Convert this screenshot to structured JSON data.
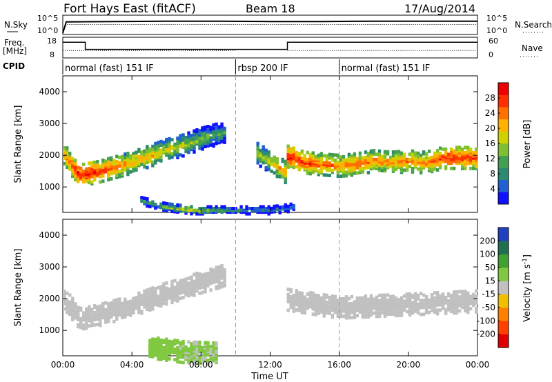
{
  "header": {
    "station": "Fort Hays East (fitACF)",
    "beam": "Beam 18",
    "date": "17/Aug/2014"
  },
  "summary_labels": {
    "nsky": "N.Sky",
    "nsearch": "N.Search",
    "freq": "Freq.",
    "freq_unit": "[MHz]",
    "nave": "Nave",
    "cpid": "CPID",
    "nsky_ticks": [
      "10^5",
      "10^0"
    ],
    "nsearch_ticks": [
      "10^5",
      "10^0"
    ],
    "freq_ticks": [
      "18",
      "8"
    ],
    "nave_ticks": [
      "60",
      "0"
    ]
  },
  "cpid_segments": [
    {
      "label": "normal (fast) 151 IF",
      "start_hour": 0,
      "end_hour": 10
    },
    {
      "label": "rbsp 200 IF",
      "start_hour": 10,
      "end_hour": 16
    },
    {
      "label": "normal (fast) 151 IF",
      "start_hour": 16,
      "end_hour": 24
    }
  ],
  "time_axis": {
    "label": "Time UT",
    "ticks": [
      "00:00",
      "04:00",
      "08:00",
      "12:00",
      "16:00",
      "20:00",
      "00:00"
    ],
    "tick_hours": [
      0,
      4,
      8,
      12,
      16,
      20,
      24
    ]
  },
  "range_axis": {
    "label": "Slant Range [km]",
    "ticks": [
      "1000",
      "2000",
      "3000",
      "4000"
    ],
    "tick_values": [
      1000,
      2000,
      3000,
      4000
    ],
    "ylim": [
      200,
      4500
    ]
  },
  "power_colorbar": {
    "label": "Power [dB]",
    "ticks": [
      "4",
      "8",
      "12",
      "16",
      "20",
      "24",
      "28"
    ],
    "colors": [
      "#1010ff",
      "#2060d0",
      "#2c8a70",
      "#44a050",
      "#80c030",
      "#d0d000",
      "#ffb000",
      "#ff7000",
      "#ff3000",
      "#ee0000"
    ]
  },
  "velocity_colorbar": {
    "label": "Velocity [m s",
    "label_exp": "-1",
    "ticks": [
      "200",
      "100",
      "50",
      "15",
      "-15",
      "-50",
      "-100",
      "-200"
    ],
    "colors": [
      "#2040c0",
      "#207050",
      "#40a030",
      "#80c840",
      "#c0c0c0",
      "#f0c000",
      "#ff8000",
      "#ff4000",
      "#e00000"
    ]
  },
  "chart_data": [
    {
      "type": "line",
      "title": "Fort Hays East (fitACF)",
      "series": [
        {
          "name": "N.Sky",
          "x_hours": [
            0,
            0.2,
            3,
            6,
            9,
            12,
            15,
            18,
            21,
            24
          ],
          "values_log10": [
            0,
            3.4,
            3.5,
            3.6,
            3.6,
            3.5,
            3.5,
            3.6,
            3.6,
            3.6
          ]
        },
        {
          "name": "N.Search",
          "x_hours": [
            0,
            0.2,
            24
          ],
          "values_log10": [
            0,
            2.6,
            2.6
          ]
        }
      ]
    },
    {
      "type": "line",
      "series": [
        {
          "name": "Freq.",
          "unit": "MHz",
          "x_hours": [
            0,
            1.3,
            1.3,
            13.0,
            13.0,
            24
          ],
          "values": [
            16,
            16,
            12,
            12,
            16,
            16
          ]
        },
        {
          "name": "Nave",
          "x_hours": [
            0,
            10,
            10,
            13,
            13,
            24
          ],
          "values": [
            20,
            20,
            23,
            23,
            20,
            20
          ]
        }
      ]
    },
    {
      "type": "heatmap",
      "variable": "Power",
      "unit": "dB",
      "xlabel": "Time UT",
      "ylabel": "Slant Range [km]",
      "ylim": [
        200,
        4500
      ],
      "colorbar_range": [
        0,
        30
      ],
      "features": [
        {
          "x_hours": [
            0,
            1,
            2,
            3,
            4,
            5,
            6,
            7,
            8,
            9,
            9.5
          ],
          "range_km": [
            2100,
            1400,
            1500,
            1650,
            1800,
            2000,
            2200,
            2350,
            2550,
            2700,
            2800
          ],
          "power_db": [
            22,
            28,
            27,
            24,
            20,
            20,
            18,
            16,
            14,
            12,
            10
          ]
        },
        {
          "x_hours": [
            11.2,
            11.8,
            12.4,
            12.9
          ],
          "range_km": [
            2100,
            1900,
            1700,
            1500
          ],
          "power_db": [
            16,
            16,
            20,
            22
          ]
        },
        {
          "x_hours": [
            13,
            14,
            15,
            16,
            17,
            18,
            19,
            20,
            21,
            22,
            23,
            24
          ],
          "range_km": [
            2000,
            1800,
            1750,
            1700,
            1750,
            1850,
            1800,
            1850,
            1800,
            1950,
            1950,
            1950
          ],
          "power_db": [
            28,
            26,
            24,
            22,
            24,
            22,
            22,
            22,
            22,
            26,
            26,
            26
          ]
        },
        {
          "x_hours": [
            4.5,
            6,
            7.5,
            9,
            10.5,
            12,
            13.5
          ],
          "range_km": [
            600,
            400,
            300,
            300,
            300,
            300,
            400
          ],
          "power_db": [
            10,
            14,
            16,
            12,
            8,
            8,
            6
          ]
        }
      ]
    },
    {
      "type": "heatmap",
      "variable": "Velocity",
      "unit": "m s^-1",
      "xlabel": "Time UT",
      "ylabel": "Slant Range [km]",
      "ylim": [
        200,
        4500
      ],
      "colorbar_range": [
        -250,
        250
      ],
      "features": [
        {
          "x_hours": [
            0,
            1,
            2,
            3,
            4,
            5,
            6,
            7,
            8,
            9,
            9.5
          ],
          "range_km": [
            2100,
            1400,
            1500,
            1650,
            1800,
            2000,
            2200,
            2350,
            2550,
            2700,
            2800
          ],
          "velocity": [
            0,
            0,
            0,
            0,
            0,
            0,
            0,
            0,
            0,
            0,
            0
          ]
        },
        {
          "x_hours": [
            13,
            16,
            20,
            24
          ],
          "range_km": [
            2000,
            1750,
            1850,
            1950
          ],
          "velocity": [
            0,
            0,
            0,
            0
          ]
        },
        {
          "x_hours": [
            5,
            7,
            9
          ],
          "range_km": [
            500,
            350,
            300
          ],
          "velocity": [
            60,
            40,
            30
          ]
        }
      ]
    }
  ]
}
